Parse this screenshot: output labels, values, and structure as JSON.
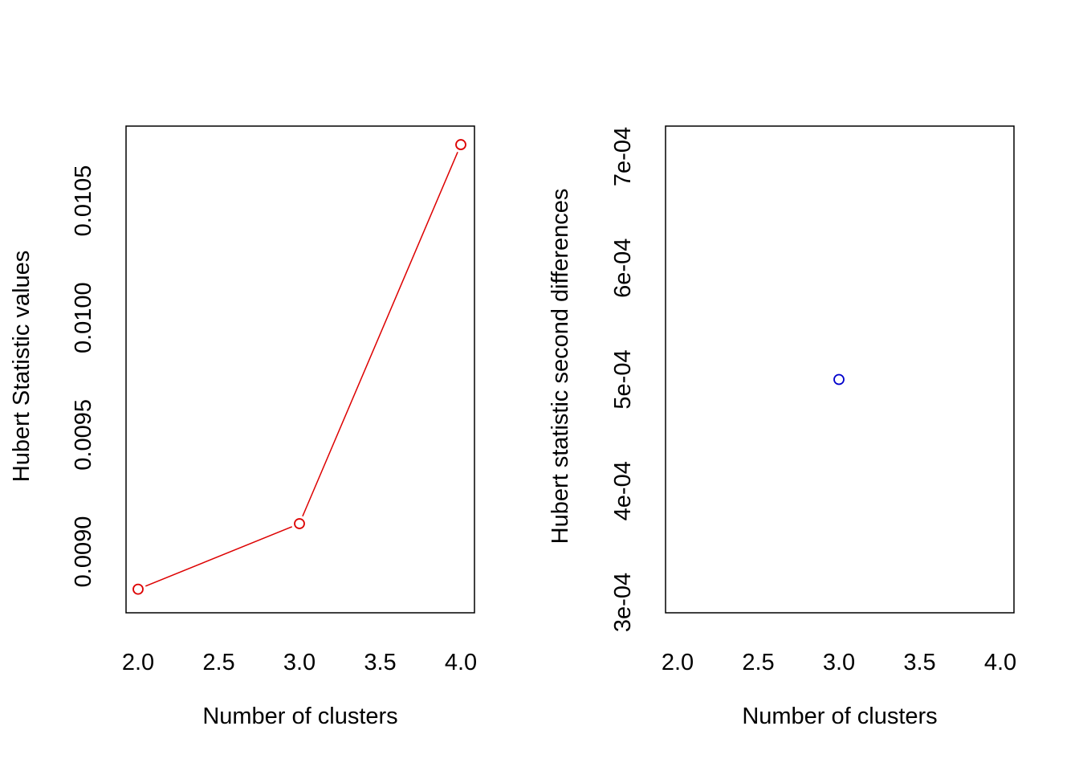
{
  "chart_data": [
    {
      "type": "line",
      "title": "",
      "xlabel": "Number of clusters",
      "ylabel": "Hubert Statistic values",
      "x": [
        2,
        3,
        4
      ],
      "series": [
        {
          "values": [
            0.00884,
            0.00912,
            0.01074
          ],
          "color": "#dd0000",
          "markers": "open-circle",
          "line": true
        }
      ],
      "xlim": [
        2,
        4
      ],
      "ylim": [
        0.0088,
        0.0108
      ],
      "xticks": [
        "2.0",
        "2.5",
        "3.0",
        "3.5",
        "4.0"
      ],
      "yticks": [
        "0.0090",
        "0.0095",
        "0.0100",
        "0.0105"
      ],
      "ytick_values": [
        0.009,
        0.0095,
        0.01,
        0.0105
      ],
      "grid": false,
      "legend": "none"
    },
    {
      "type": "scatter",
      "title": "",
      "xlabel": "Number of clusters",
      "ylabel": "Hubert statistic second differences",
      "x": [
        3
      ],
      "series": [
        {
          "values": [
            0.0005
          ],
          "color": "#0000cc",
          "markers": "open-circle",
          "line": false
        }
      ],
      "xlim": [
        2,
        4
      ],
      "ylim": [
        0.0003,
        0.00074
      ],
      "xticks": [
        "2.0",
        "2.5",
        "3.0",
        "3.5",
        "4.0"
      ],
      "yticks": [
        "3e-04",
        "4e-04",
        "5e-04",
        "6e-04",
        "7e-04"
      ],
      "ytick_values": [
        0.0003,
        0.0004,
        0.0005,
        0.0006,
        0.0007
      ],
      "grid": false,
      "legend": "none"
    }
  ]
}
